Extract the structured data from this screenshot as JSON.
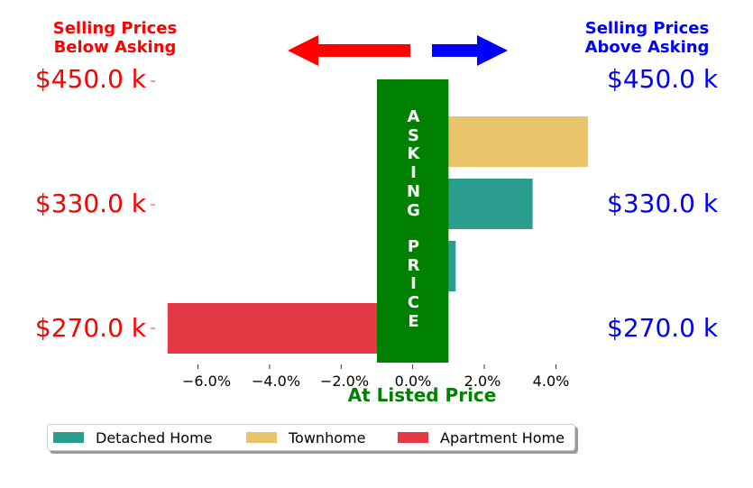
{
  "colors": {
    "detached": "#2a9d8f",
    "townhome": "#e9c46a",
    "apartment": "#e63946",
    "asking_band": "#008000",
    "below_text": "#ff0000",
    "above_text": "#0000ff",
    "listed_label": "#008000"
  },
  "headers": {
    "below": "Selling Prices\nBelow Asking",
    "above": "Selling Prices\nAbove Asking"
  },
  "arrows": {
    "left": {
      "direction": "left",
      "color": "#ff0000"
    },
    "right": {
      "direction": "right",
      "color": "#0000ff"
    }
  },
  "band_text": {
    "top": "A\nS\nK\nI\nN\nG",
    "bottom": "P\nR\nI\nC\nE"
  },
  "chart_data": {
    "type": "bar",
    "orientation": "horizontal",
    "xlabel": "At Listed Price",
    "xlim": [
      -7.2,
      5.2
    ],
    "x_ticks": [
      -6.0,
      -4.0,
      -2.0,
      0.0,
      2.0,
      4.0
    ],
    "x_tick_labels": [
      "−6.0%",
      "−4.0%",
      "−2.0%",
      "0.0%",
      "2.0%",
      "4.0%"
    ],
    "y_tick_labels_left": [
      "$270.0 k",
      "$330.0 k",
      "$450.0 k"
    ],
    "y_tick_labels_right": [
      "$270.0 k",
      "$330.0 k",
      "$450.0 k"
    ],
    "asking_band": [
      -1.0,
      1.0
    ],
    "bars": [
      {
        "series": "Apartment Home",
        "value": -6.85
      },
      {
        "series": "Detached Home",
        "value": 1.2
      },
      {
        "series": "Detached Home",
        "value": 3.35
      },
      {
        "series": "Townhome",
        "value": 4.9
      }
    ],
    "legend": [
      "Detached Home",
      "Townhome",
      "Apartment Home"
    ],
    "legend_position": "bottom"
  }
}
